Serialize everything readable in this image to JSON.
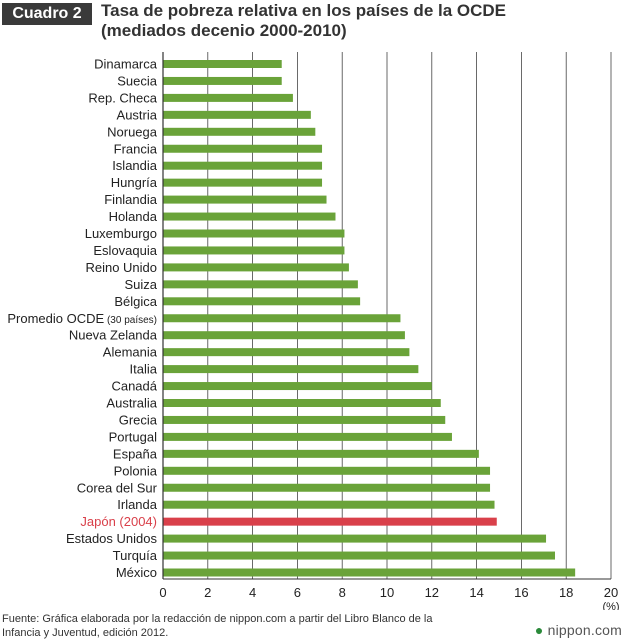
{
  "header": {
    "badge": "Cuadro 2",
    "title_line1": "Tasa de pobreza relativa en los países de la OCDE",
    "title_line2": "(mediados decenio 2000-2010)"
  },
  "footer": {
    "source_line1": "Fuente: Gráfica elaborada por la redacción de nippon.com a partir del Libro Blanco de la",
    "source_line2": "Infancia y Juventud, edición 2012.",
    "logo": "nippon.com"
  },
  "colors": {
    "bar": "#6aa339",
    "highlight": "#d9404a",
    "grid": "#444444"
  },
  "chart_data": {
    "type": "bar",
    "orientation": "horizontal",
    "xlim": [
      0,
      20
    ],
    "xticks": [
      0,
      2,
      4,
      6,
      8,
      10,
      12,
      14,
      16,
      18,
      20
    ],
    "unit": "(%)",
    "grid": true,
    "highlight_category": "Japón (2004)",
    "categories": [
      "Dinamarca",
      "Suecia",
      "Rep. Checa",
      "Austria",
      "Noruega",
      "Francia",
      "Islandia",
      "Hungría",
      "Finlandia",
      "Holanda",
      "Luxemburgo",
      "Eslovaquia",
      "Reino Unido",
      "Suiza",
      "Bélgica",
      "Promedio OCDE",
      "Nueva Zelanda",
      "Alemania",
      "Italia",
      "Canadá",
      "Australia",
      "Grecia",
      "Portugal",
      "España",
      "Polonia",
      "Corea del Sur",
      "Irlanda",
      "Japón (2004)",
      "Estados Unidos",
      "Turquía",
      "México"
    ],
    "category_notes": {
      "Promedio OCDE": "(30 países)"
    },
    "values": [
      5.3,
      5.3,
      5.8,
      6.6,
      6.8,
      7.1,
      7.1,
      7.1,
      7.3,
      7.7,
      8.1,
      8.1,
      8.3,
      8.7,
      8.8,
      10.6,
      10.8,
      11.0,
      11.4,
      12.0,
      12.4,
      12.6,
      12.9,
      14.1,
      14.6,
      14.6,
      14.8,
      14.9,
      17.1,
      17.5,
      18.4
    ]
  }
}
